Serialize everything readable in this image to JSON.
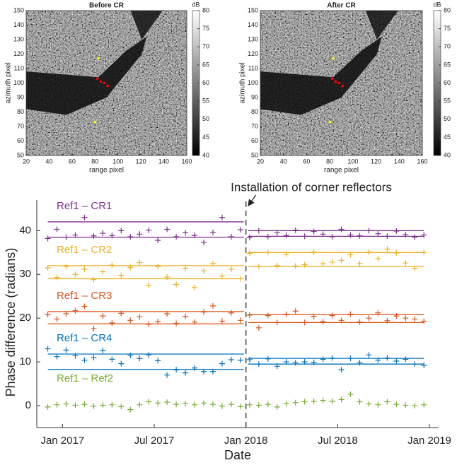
{
  "chart_data": [
    {
      "type": "heatmap",
      "title": "Before CR",
      "xlabel": "range pixel",
      "ylabel": "azimuth pixel",
      "xlim": [
        20,
        160
      ],
      "xticks": [
        20,
        40,
        60,
        80,
        100,
        120,
        140,
        160
      ],
      "ylim": [
        50,
        150
      ],
      "yticks": [
        50,
        60,
        70,
        80,
        90,
        100,
        110,
        120,
        130,
        140,
        150
      ],
      "colorbar": {
        "label": "dB",
        "lim": [
          40,
          80
        ],
        "ticks": [
          40,
          45,
          50,
          55,
          60,
          65,
          70,
          75,
          80
        ]
      },
      "markers": [
        {
          "color": "#ffff00",
          "x": [
            83,
            80
          ],
          "y": [
            117,
            73
          ]
        },
        {
          "color": "#ff0000",
          "x": [
            82,
            85,
            88,
            91
          ],
          "y": [
            103,
            101,
            100,
            98
          ]
        }
      ]
    },
    {
      "type": "heatmap",
      "title": "After CR",
      "xlabel": "range pixel",
      "ylabel": "azimuth pixel",
      "xlim": [
        20,
        160
      ],
      "xticks": [
        20,
        40,
        60,
        80,
        100,
        120,
        140,
        160
      ],
      "ylim": [
        50,
        150
      ],
      "yticks": [
        50,
        60,
        70,
        80,
        90,
        100,
        110,
        120,
        130,
        140,
        150
      ],
      "colorbar": {
        "label": "dB",
        "lim": [
          40,
          80
        ],
        "ticks": [
          40,
          45,
          50,
          55,
          60,
          65,
          70,
          75,
          80
        ]
      },
      "markers": [
        {
          "color": "#ffff00",
          "x": [
            83,
            80
          ],
          "y": [
            117,
            73
          ]
        },
        {
          "color": "#ff0000",
          "x": [
            82,
            85,
            88,
            91
          ],
          "y": [
            103,
            101,
            100,
            98
          ]
        }
      ]
    },
    {
      "type": "scatter",
      "xlabel": "Date",
      "ylabel": "Phase difference (radians)",
      "xlim": [
        2016.86,
        2019.05
      ],
      "xticks": [
        {
          "value": 2017.0,
          "label": "Jan 2017"
        },
        {
          "value": 2017.5,
          "label": "Jul 2017"
        },
        {
          "value": 2018.0,
          "label": "Jan 2018"
        },
        {
          "value": 2018.5,
          "label": "Jul 2018"
        },
        {
          "value": 2019.0,
          "label": "Jan 2019"
        }
      ],
      "ylim": [
        -5,
        47
      ],
      "yticks": [
        0,
        10,
        20,
        30,
        40
      ],
      "event": {
        "x": 2018.0,
        "label": "Installation of corner reflectors"
      },
      "x": [
        2016.92,
        2016.97,
        2017.02,
        2017.07,
        2017.12,
        2017.17,
        2017.22,
        2017.27,
        2017.32,
        2017.37,
        2017.42,
        2017.47,
        2017.52,
        2017.57,
        2017.62,
        2017.67,
        2017.72,
        2017.77,
        2017.82,
        2017.87,
        2017.92,
        2017.97,
        2018.02,
        2018.07,
        2018.12,
        2018.17,
        2018.22,
        2018.27,
        2018.32,
        2018.37,
        2018.42,
        2018.47,
        2018.52,
        2018.57,
        2018.62,
        2018.67,
        2018.72,
        2018.77,
        2018.82,
        2018.87,
        2018.92,
        2018.97
      ],
      "series": [
        {
          "name": "Ref1 – CR1",
          "color": "#7e2f8e",
          "levels_before": [
            42,
            38.5
          ],
          "levels_after": [
            40,
            38.7
          ],
          "values": [
            38.2,
            40.3,
            38.5,
            39.0,
            43.0,
            38.8,
            39.4,
            38.9,
            40.0,
            38.6,
            39.2,
            40.1,
            37.8,
            40.3,
            38.6,
            39.5,
            38.9,
            37.3,
            39.6,
            43.0,
            38.6,
            40.2,
            38.4,
            40.0,
            38.6,
            39.5,
            38.9,
            40.1,
            38.7,
            39.8,
            39.2,
            38.6,
            40.3,
            39.0,
            38.8,
            40.0,
            39.3,
            38.7,
            39.9,
            39.1,
            38.5,
            39.0
          ]
        },
        {
          "name": "Ref1 – CR2",
          "color": "#edb120",
          "levels_before": [
            32,
            29
          ],
          "levels_after": [
            35,
            31.8
          ],
          "values": [
            31.5,
            29.3,
            31.8,
            30.0,
            31.2,
            28.8,
            30.6,
            32.1,
            29.8,
            31.6,
            32.7,
            27.5,
            31.8,
            29.4,
            27.7,
            31.4,
            27.0,
            30.8,
            32.5,
            29.6,
            31.2,
            29.0,
            34.8,
            31.8,
            35.0,
            32.0,
            34.6,
            31.9,
            32.2,
            35.1,
            32.4,
            32.8,
            33.2,
            34.5,
            32.5,
            35.1,
            33.6,
            35.8,
            34.9,
            32.6,
            31.4,
            35.0
          ]
        },
        {
          "name": "Ref1 – CR3",
          "color": "#d95319",
          "levels_before": [
            21.5,
            18.7
          ],
          "levels_after": [
            20.8,
            19
          ],
          "values": [
            20.8,
            19.8,
            21.0,
            21.7,
            22.7,
            17.6,
            20.5,
            18.9,
            21.1,
            19.5,
            20.3,
            18.6,
            19.2,
            21.0,
            18.8,
            20.4,
            19.1,
            21.4,
            22.8,
            19.3,
            21.2,
            19.5,
            20.7,
            17.8,
            20.6,
            19.0,
            20.9,
            21.6,
            19.0,
            20.4,
            19.2,
            20.6,
            19.5,
            20.9,
            19.1,
            20.0,
            21.2,
            19.4,
            20.5,
            20.0,
            19.8,
            19.3
          ]
        },
        {
          "name": "Ref1 – CR4",
          "color": "#0072bd",
          "levels_before": [
            11.8,
            8.3
          ],
          "levels_after": [
            10.8,
            9.5
          ],
          "values": [
            13.0,
            11.2,
            12.7,
            11.4,
            10.4,
            11.0,
            12.6,
            10.6,
            9.6,
            11.5,
            10.8,
            11.6,
            10.3,
            7.0,
            8.2,
            7.5,
            8.6,
            7.8,
            7.8,
            9.6,
            10.5,
            10.4,
            10.5,
            9.5,
            10.7,
            9.0,
            10.0,
            9.8,
            10.0,
            9.9,
            10.6,
            10.9,
            8.2,
            10.8,
            9.8,
            11.6,
            10.4,
            10.9,
            10.2,
            10.6,
            9.5,
            9.2
          ]
        },
        {
          "name": "Ref1 – Ref2",
          "color": "#77ac30",
          "values": [
            -0.3,
            0.2,
            0.4,
            0.1,
            0.3,
            -0.1,
            0.1,
            0.2,
            -0.2,
            -0.9,
            0.2,
            0.9,
            0.6,
            0.8,
            0.3,
            0.5,
            0.2,
            0.6,
            0.3,
            -0.1,
            0.3,
            -0.2,
            0.2,
            0.1,
            0.3,
            -0.3,
            0.5,
            0.7,
            0.9,
            1.0,
            1.2,
            1.0,
            1.4,
            2.6,
            0.9,
            0.4,
            0.2,
            0.9,
            0.3,
            0.1,
            0.0,
            0.2
          ]
        }
      ]
    }
  ]
}
